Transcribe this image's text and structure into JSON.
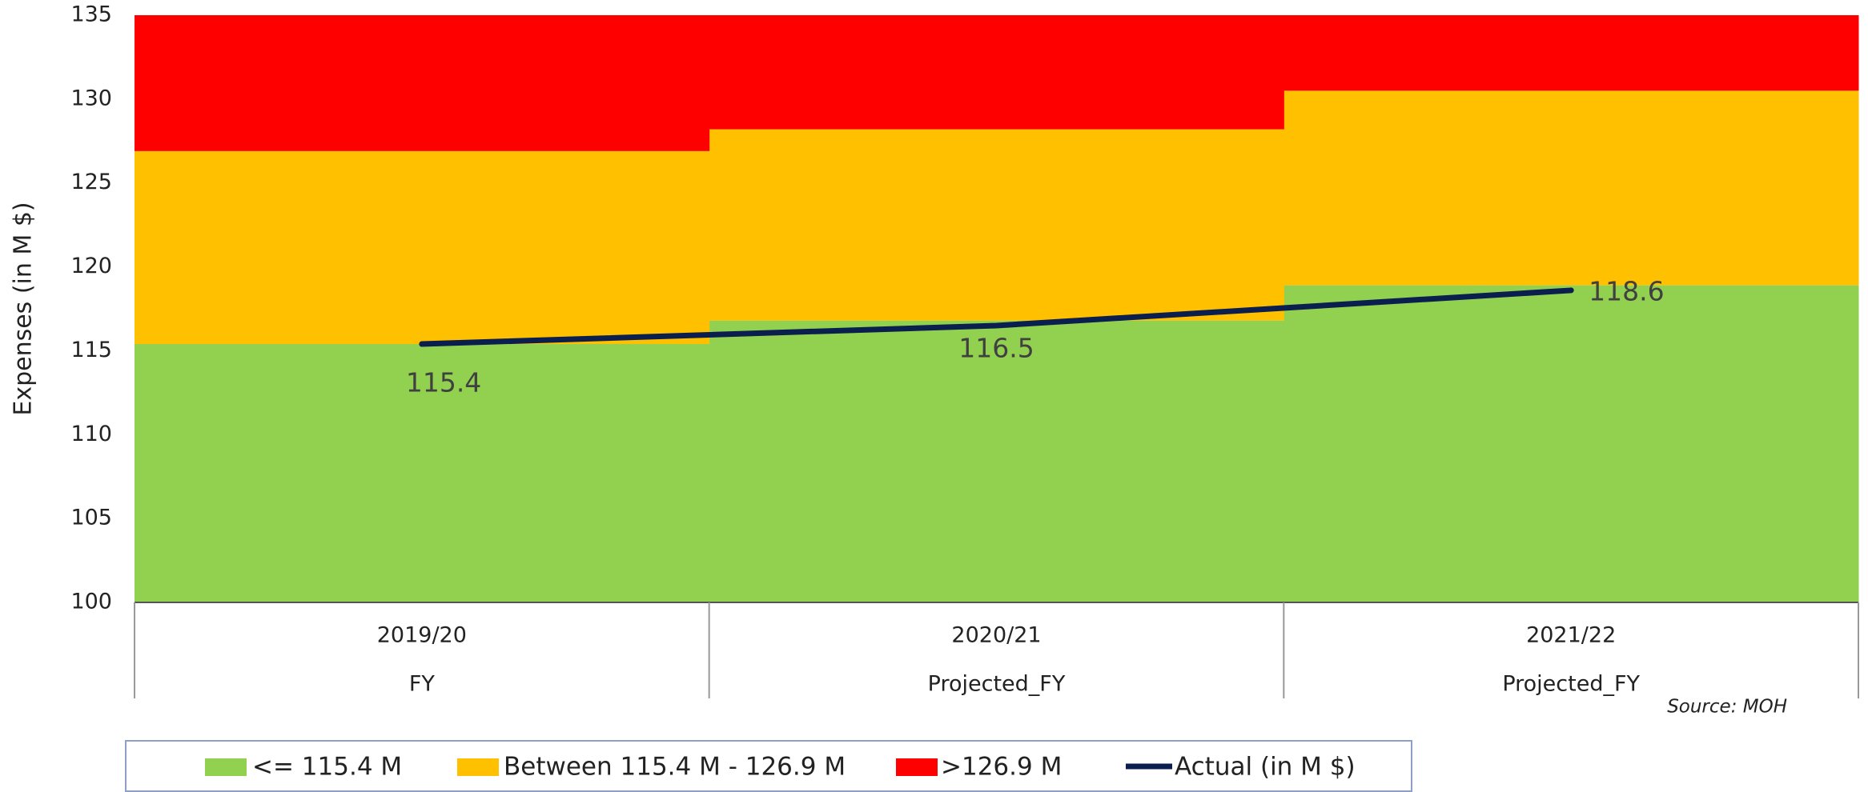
{
  "chart_data": {
    "type": "combo",
    "y_label": "Expenses (in M $)",
    "categories": [
      "2019/20",
      "2020/21",
      "2021/22"
    ],
    "sub_categories": [
      "FY",
      "Projected_FY",
      "Projected_FY"
    ],
    "series": [
      {
        "name": "<= 115.4 M",
        "type": "bar",
        "color": "#92d050",
        "values": [
          115.4,
          116.8,
          118.9
        ]
      },
      {
        "name": "Between 115.4 M - 126.9 M",
        "type": "bar",
        "color": "#ffc000",
        "values": [
          11.5,
          11.4,
          11.6
        ]
      },
      {
        "name": ">126.9 M",
        "type": "bar",
        "color": "#ff0000",
        "values": [
          8.1,
          6.8,
          4.5
        ]
      },
      {
        "name": "Actual (in M $)",
        "type": "line",
        "color": "#0b1f4f",
        "values": [
          115.4,
          116.5,
          118.6
        ]
      }
    ],
    "ylim": [
      100,
      135
    ],
    "yticks": [
      100,
      105,
      110,
      115,
      120,
      125,
      130,
      135
    ],
    "source": "Source: MOH"
  }
}
